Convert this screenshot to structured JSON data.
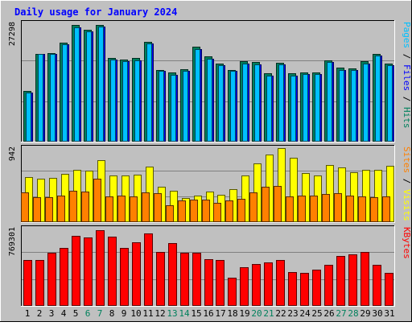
{
  "chart_data": {
    "type": "bar",
    "title": "Daily usage for January 2024",
    "categories": [
      "1",
      "2",
      "3",
      "4",
      "5",
      "6",
      "7",
      "8",
      "9",
      "10",
      "11",
      "12",
      "13",
      "14",
      "15",
      "16",
      "17",
      "18",
      "19",
      "20",
      "21",
      "22",
      "23",
      "24",
      "25",
      "26",
      "27",
      "28",
      "29",
      "30",
      "31"
    ],
    "weekend_days": [
      "6",
      "7",
      "13",
      "14",
      "20",
      "21",
      "27",
      "28"
    ],
    "panels": [
      {
        "id": "hits_files_pages",
        "max_label": "27298",
        "ymax": 27298,
        "series": [
          {
            "name": "Hits",
            "color": "#00805c",
            "values": [
              11700,
              20300,
              20400,
              22900,
              26900,
              25800,
              27000,
              19400,
              18900,
              19300,
              23100,
              16600,
              15900,
              16700,
              21900,
              19600,
              18100,
              16600,
              18500,
              18300,
              15700,
              18200,
              15700,
              15900,
              15900,
              18800,
              17000,
              16900,
              18500,
              20300,
              18000
            ]
          },
          {
            "name": "Files",
            "color": "#0000ff",
            "values": [
              11300,
              20200,
              20200,
              22500,
              26300,
              25400,
              26600,
              19000,
              18500,
              18800,
              22700,
              16300,
              15500,
              16400,
              21400,
              19200,
              17700,
              16300,
              18100,
              17900,
              15300,
              17800,
              15300,
              15600,
              15600,
              18400,
              16600,
              16600,
              18100,
              19900,
              17600
            ]
          },
          {
            "name": "Pages",
            "color": "#00c0ff",
            "values": [
              11300,
              20200,
              20200,
              22500,
              26300,
              25400,
              26600,
              19000,
              18500,
              18800,
              22700,
              16300,
              15500,
              16400,
              21400,
              19200,
              17700,
              16300,
              18100,
              17900,
              15300,
              17800,
              15300,
              15600,
              15600,
              18400,
              16600,
              16600,
              18100,
              19900,
              17600
            ]
          }
        ]
      },
      {
        "id": "visits_sites",
        "max_label": "942",
        "ymax": 942,
        "series": [
          {
            "name": "Visits",
            "color": "#ffff00",
            "values": [
              570,
              550,
              560,
              610,
              670,
              660,
              790,
              590,
              590,
              600,
              710,
              450,
              400,
              310,
              340,
              390,
              350,
              420,
              590,
              750,
              860,
              942,
              820,
              620,
              590,
              730,
              700,
              630,
              670,
              670,
              720
            ]
          },
          {
            "name": "Sites",
            "color": "#ff8000",
            "values": [
              380,
              320,
              320,
              340,
              400,
              390,
              550,
              330,
              340,
              330,
              380,
              370,
              210,
              280,
              290,
              290,
              250,
              280,
              300,
              380,
              450,
              460,
              330,
              340,
              340,
              360,
              370,
              340,
              330,
              320,
              330
            ]
          }
        ]
      },
      {
        "id": "kbytes",
        "max_label": "769301",
        "ymax": 769301,
        "series": [
          {
            "name": "KBytes",
            "color": "#ff0000",
            "values": [
              455000,
              460000,
              530000,
              580000,
              700000,
              680000,
              755000,
              690000,
              580000,
              630000,
              720000,
              535000,
              625000,
              525000,
              530000,
              465000,
              455000,
              280000,
              385000,
              420000,
              435000,
              460000,
              340000,
              325000,
              360000,
              410000,
              500000,
              510000,
              535000,
              410000,
              325000
            ]
          }
        ]
      }
    ]
  }
}
